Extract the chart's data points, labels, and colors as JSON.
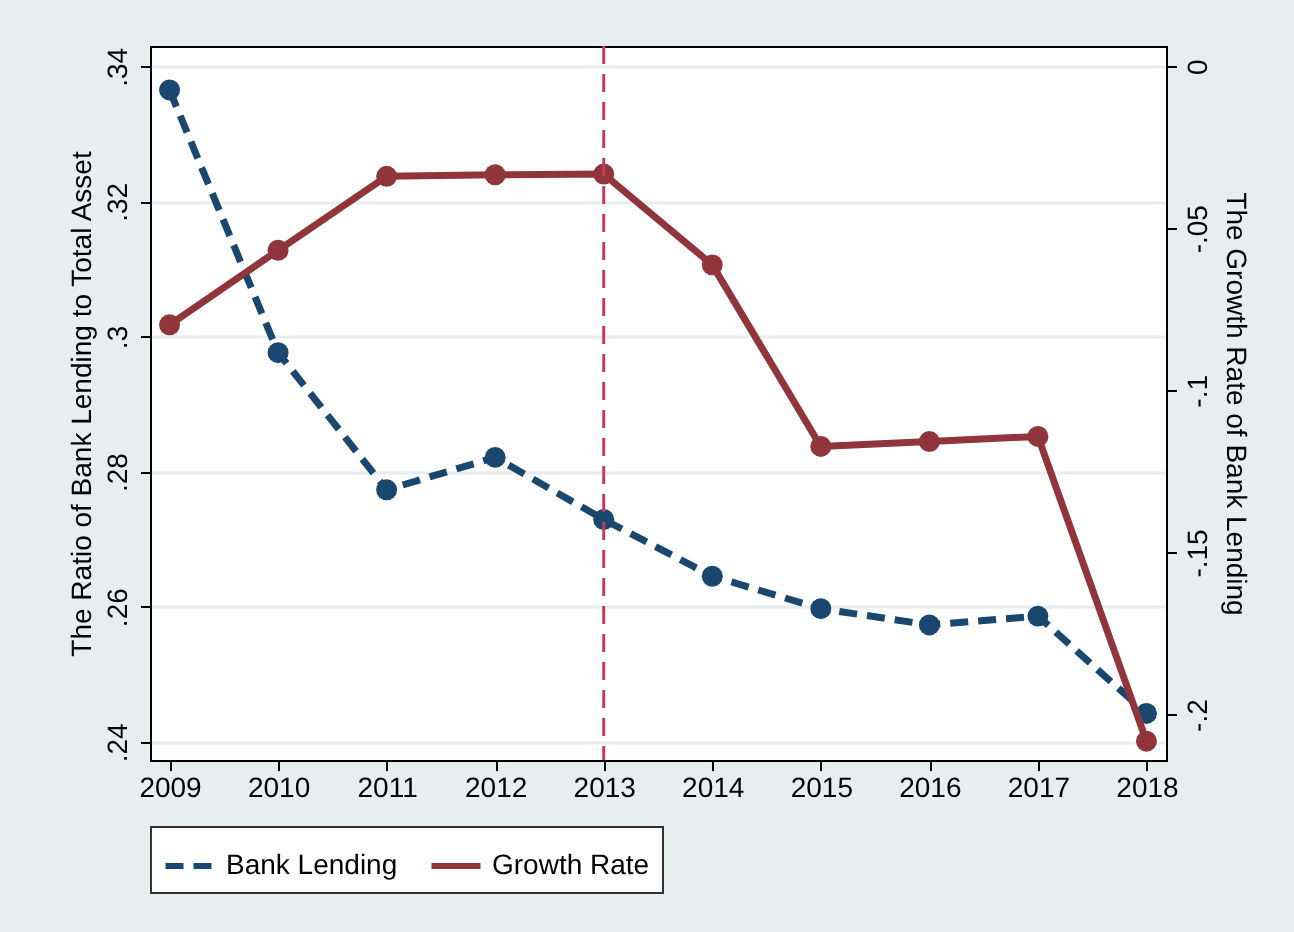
{
  "chart_data": {
    "type": "line",
    "xlabel": null,
    "ylabel": "The Ratio of Bank Lending to Total Asset",
    "y2label": "The Growth Rate of Bank Lending",
    "x": [
      2009,
      2010,
      2011,
      2012,
      2013,
      2014,
      2015,
      2016,
      2017,
      2018
    ],
    "series": [
      {
        "name": "Bank Lending",
        "color": "#1a476f",
        "line_style": "dashed",
        "values": [
          0.3365,
          0.2976,
          0.2773,
          0.2821,
          0.2729,
          0.2645,
          0.2597,
          0.2573,
          0.2586,
          0.2442
        ]
      },
      {
        "name": "Growth Rate",
        "color": "#90353b",
        "line_style": "solid",
        "axis": "y2",
        "values": [
          -0.0798,
          -0.0568,
          -0.034,
          -0.0335,
          -0.0333,
          -0.0613,
          -0.1173,
          -0.1158,
          -0.1142,
          -0.2082
        ]
      }
    ],
    "xlim": [
      2008.82,
      2018.18
    ],
    "xticks": [
      2009,
      2010,
      2011,
      2012,
      2013,
      2014,
      2015,
      2016,
      2017,
      2018
    ],
    "ylim": [
      0.2373,
      0.343
    ],
    "yticks": [
      {
        "value": 0.24,
        "label": ".24"
      },
      {
        "value": 0.26,
        "label": ".26"
      },
      {
        "value": 0.28,
        "label": ".28"
      },
      {
        "value": 0.3,
        "label": ".3"
      },
      {
        "value": 0.32,
        "label": ".32"
      },
      {
        "value": 0.34,
        "label": ".34"
      }
    ],
    "y2lim": [
      -0.214,
      0.0062
    ],
    "y2ticks": [
      0,
      {
        "value": -0.05,
        "label": "-.05"
      },
      {
        "value": -0.1,
        "label": "-.1"
      },
      {
        "value": -0.15,
        "label": "-.15"
      },
      {
        "value": -0.2,
        "label": "-.2"
      }
    ],
    "ref_lines": [
      {
        "axis": "x",
        "value": 2013,
        "color": "#c93a5a",
        "line_style": "dashed"
      }
    ],
    "grid": "y",
    "legend": "bottom",
    "marker": "circle"
  }
}
